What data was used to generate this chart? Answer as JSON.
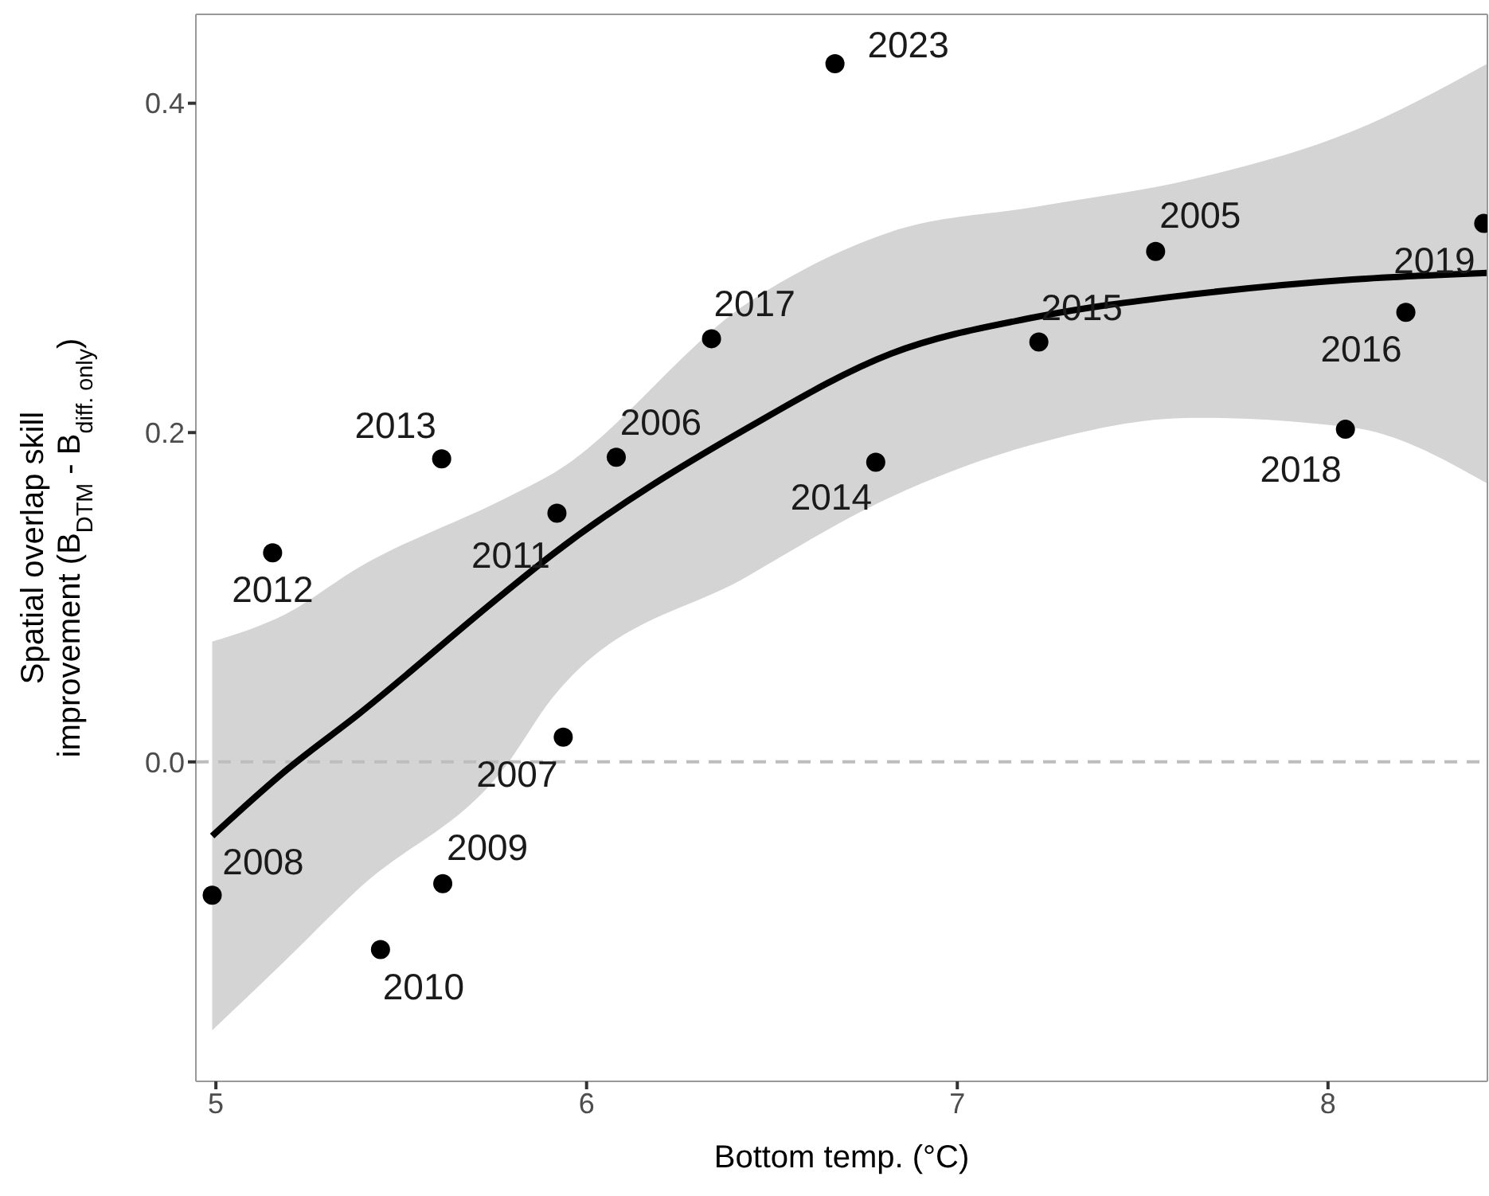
{
  "chart_data": {
    "type": "scatter",
    "xlabel": "Bottom temp. (°C)",
    "ylabel": "Spatial overlap skill\nimprovement (B$_{DTM}$ - B$_{diff. only}$)",
    "xlim": [
      4.946,
      8.43
    ],
    "ylim": [
      -0.194,
      0.454
    ],
    "xticks": [
      5,
      6,
      7,
      8
    ],
    "yticks": [
      {
        "value": 0,
        "label": "0.0"
      },
      {
        "value": 0.2,
        "label": "0.2"
      },
      {
        "value": 0.4,
        "label": "0.4"
      }
    ],
    "marker": "circle",
    "series": [
      {
        "color": "#000000",
        "x": [
          4.99,
          5.153,
          5.609,
          5.92,
          6.08,
          6.337,
          6.67,
          6.78,
          7.22,
          7.535,
          8.047,
          8.21,
          8.42,
          5.937,
          5.612,
          5.444
        ],
        "values": [
          -0.081,
          0.127,
          0.184,
          0.151,
          0.185,
          0.257,
          0.424,
          0.182,
          0.255,
          0.31,
          0.202,
          0.273,
          0.327,
          0.015,
          -0.074,
          -0.114
        ]
      },
      {
        "type": "line",
        "marker": "none",
        "color": "#000000",
        "x": [
          4.99,
          5.19,
          5.385,
          5.78,
          5.908,
          6.436,
          6.822,
          7.208,
          7.637,
          8.066,
          8.43
        ],
        "values": [
          -0.045,
          -0.005,
          0.029,
          0.103,
          0.126,
          0.203,
          0.248,
          0.27,
          0.284,
          0.293,
          0.297
        ],
        "lower": [
          -0.163,
          -0.12,
          -0.077,
          -0.003,
          0.039,
          0.113,
          0.161,
          0.193,
          0.209,
          0.203,
          0.169
        ],
        "upper": [
          0.073,
          0.09,
          0.118,
          0.16,
          0.175,
          0.279,
          0.322,
          0.337,
          0.354,
          0.383,
          0.424
        ]
      }
    ],
    "ref_lines": [
      {
        "axis": "y",
        "value": 0,
        "color": "#bdbdbd",
        "line_style": "dashed"
      }
    ],
    "annotations": [
      {
        "text": "2008",
        "x": 4.99,
        "y": -0.081
      },
      {
        "text": "2012",
        "x": 5.153,
        "y": 0.127
      },
      {
        "text": "2013",
        "x": 5.609,
        "y": 0.184
      },
      {
        "text": "2011",
        "x": 5.92,
        "y": 0.151
      },
      {
        "text": "2006",
        "x": 6.08,
        "y": 0.185
      },
      {
        "text": "2017",
        "x": 6.337,
        "y": 0.257
      },
      {
        "text": "2023",
        "x": 6.67,
        "y": 0.424
      },
      {
        "text": "2014",
        "x": 6.78,
        "y": 0.182
      },
      {
        "text": "2015",
        "x": 7.22,
        "y": 0.255
      },
      {
        "text": "2005",
        "x": 7.535,
        "y": 0.31
      },
      {
        "text": "2018",
        "x": 8.047,
        "y": 0.202
      },
      {
        "text": "2016",
        "x": 8.21,
        "y": 0.273
      },
      {
        "text": "2019",
        "x": 8.42,
        "y": 0.327
      },
      {
        "text": "2007",
        "x": 5.937,
        "y": 0.015
      },
      {
        "text": "2009",
        "x": 5.612,
        "y": -0.074
      },
      {
        "text": "2010",
        "x": 5.444,
        "y": -0.114
      }
    ]
  }
}
